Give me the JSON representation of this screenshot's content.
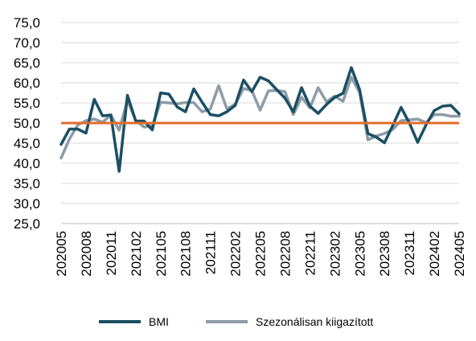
{
  "chart_data": {
    "type": "line",
    "title": "",
    "xlabel": "",
    "ylabel": "",
    "ylim": [
      25,
      75
    ],
    "yticks": [
      "25,0",
      "30,0",
      "35,0",
      "40,0",
      "45,0",
      "50,0",
      "55,0",
      "60,0",
      "65,0",
      "70,0",
      "75,0"
    ],
    "grid": true,
    "legend_position": "bottom",
    "x": [
      "202005",
      "202006",
      "202007",
      "202008",
      "202009",
      "202010",
      "202011",
      "202012",
      "202101",
      "202102",
      "202103",
      "202104",
      "202105",
      "202106",
      "202107",
      "202108",
      "202109",
      "202110",
      "202111",
      "202112",
      "202201",
      "202202",
      "202203",
      "202204",
      "202205",
      "202206",
      "202207",
      "202208",
      "202209",
      "202210",
      "202211",
      "202212",
      "202301",
      "202302",
      "202303",
      "202304",
      "202305",
      "202306",
      "202307",
      "202308",
      "202309",
      "202310",
      "202311",
      "202312",
      "202401",
      "202402",
      "202403",
      "202404",
      "202405"
    ],
    "xtick_labels": [
      "202005",
      "202008",
      "202011",
      "202102",
      "202105",
      "202108",
      "202111",
      "202202",
      "202205",
      "202208",
      "202211",
      "202302",
      "202305",
      "202308",
      "202311",
      "202402",
      "202405"
    ],
    "reference_line": {
      "value": 50,
      "color": "#e46c2a"
    },
    "series": [
      {
        "name": "BMI",
        "color": "#1b4f63",
        "values": [
          44.7,
          48.5,
          48.5,
          47.5,
          55.9,
          51.8,
          52.0,
          38.0,
          56.9,
          50.5,
          50.5,
          48.3,
          57.5,
          57.2,
          54.0,
          52.8,
          58.5,
          55.2,
          52.1,
          51.8,
          52.8,
          54.4,
          60.7,
          57.8,
          61.4,
          60.5,
          58.3,
          56.2,
          52.8,
          58.8,
          54.2,
          52.4,
          54.6,
          56.4,
          57.4,
          63.8,
          58.3,
          47.4,
          46.5,
          45.1,
          49.4,
          53.9,
          50.0,
          45.2,
          49.5,
          53.1,
          54.2,
          54.4,
          52.3
        ]
      },
      {
        "name": "Szezonálisan kiigazított",
        "color": "#8e9ca6",
        "values": [
          41.3,
          46.0,
          49.5,
          50.6,
          51.0,
          50.2,
          52.0,
          48.2,
          55.7,
          50.6,
          49.0,
          49.3,
          55.2,
          55.0,
          54.8,
          55.1,
          55.1,
          52.8,
          53.5,
          59.3,
          53.5,
          54.7,
          58.6,
          58.1,
          53.2,
          58.0,
          58.1,
          57.8,
          52.1,
          56.4,
          53.8,
          58.8,
          55.3,
          56.7,
          55.4,
          61.4,
          57.6,
          45.8,
          46.8,
          47.4,
          48.4,
          50.6,
          50.8,
          51.0,
          50.1,
          52.1,
          52.1,
          51.7,
          51.7
        ]
      }
    ]
  }
}
